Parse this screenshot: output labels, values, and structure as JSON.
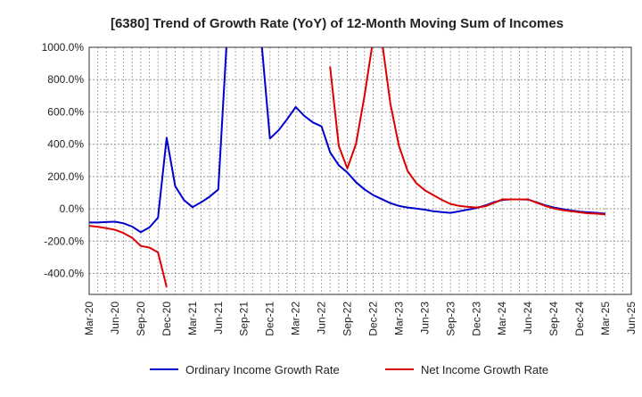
{
  "chart_data": {
    "type": "line",
    "title": "[6380]  Trend of Growth Rate (YoY) of 12-Month Moving Sum of Incomes",
    "xlabel": "",
    "ylabel": "",
    "x_ticks": [
      "Mar-20",
      "Jun-20",
      "Sep-20",
      "Dec-20",
      "Mar-21",
      "Jun-21",
      "Sep-21",
      "Dec-21",
      "Mar-22",
      "Jun-22",
      "Sep-22",
      "Dec-22",
      "Mar-23",
      "Jun-23",
      "Sep-23",
      "Dec-23",
      "Mar-24",
      "Jun-24",
      "Sep-24",
      "Dec-24",
      "Mar-25",
      "Jun-25"
    ],
    "y_ticks": [
      1000,
      800,
      600,
      400,
      200,
      0,
      -200,
      -400
    ],
    "y_tick_labels": [
      "1000.0%",
      "800.0%",
      "600.0%",
      "400.0%",
      "200.0%",
      "0.0%",
      "-200.0%",
      "-400.0%"
    ],
    "ylim": [
      -530,
      1000
    ],
    "grid": true,
    "legend_position": "bottom",
    "series": [
      {
        "name": "Ordinary Income Growth Rate",
        "color": "#0000cc",
        "points": [
          [
            "Mar-20",
            -85
          ],
          [
            "Apr-20",
            -85
          ],
          [
            "May-20",
            -82
          ],
          [
            "Jun-20",
            -80
          ],
          [
            "Jul-20",
            -90
          ],
          [
            "Aug-20",
            -110
          ],
          [
            "Sep-20",
            -145
          ],
          [
            "Oct-20",
            -115
          ],
          [
            "Nov-20",
            -55
          ],
          [
            "Dec-20",
            440
          ],
          [
            "Jan-21",
            140
          ],
          [
            "Feb-21",
            55
          ],
          [
            "Mar-21",
            10
          ],
          [
            "Apr-21",
            40
          ],
          [
            "May-21",
            75
          ],
          [
            "Jun-21",
            120
          ],
          [
            "Jul-21",
            1050
          ],
          [
            "Nov-21",
            1050
          ],
          [
            "Dec-21",
            435
          ],
          [
            "Jan-22",
            485
          ],
          [
            "Feb-22",
            555
          ],
          [
            "Mar-22",
            630
          ],
          [
            "Apr-22",
            575
          ],
          [
            "May-22",
            535
          ],
          [
            "Jun-22",
            510
          ],
          [
            "Jul-22",
            350
          ],
          [
            "Aug-22",
            270
          ],
          [
            "Sep-22",
            225
          ],
          [
            "Oct-22",
            165
          ],
          [
            "Nov-22",
            120
          ],
          [
            "Dec-22",
            85
          ],
          [
            "Jan-23",
            60
          ],
          [
            "Feb-23",
            35
          ],
          [
            "Mar-23",
            18
          ],
          [
            "Apr-23",
            8
          ],
          [
            "May-23",
            2
          ],
          [
            "Jun-23",
            -5
          ],
          [
            "Jul-23",
            -15
          ],
          [
            "Aug-23",
            -20
          ],
          [
            "Sep-23",
            -25
          ],
          [
            "Oct-23",
            -15
          ],
          [
            "Nov-23",
            -5
          ],
          [
            "Dec-23",
            5
          ],
          [
            "Jan-24",
            20
          ],
          [
            "Feb-24",
            40
          ],
          [
            "Mar-24",
            55
          ],
          [
            "Apr-24",
            58
          ],
          [
            "May-24",
            58
          ],
          [
            "Jun-24",
            57
          ],
          [
            "Jul-24",
            40
          ],
          [
            "Aug-24",
            22
          ],
          [
            "Sep-24",
            8
          ],
          [
            "Oct-24",
            -2
          ],
          [
            "Nov-24",
            -10
          ],
          [
            "Dec-24",
            -18
          ],
          [
            "Jan-25",
            -22
          ],
          [
            "Feb-25",
            -25
          ],
          [
            "Mar-25",
            -30
          ]
        ]
      },
      {
        "name": "Net Income Growth Rate",
        "color": "#dd0000",
        "points": [
          [
            "Mar-20",
            -105
          ],
          [
            "Apr-20",
            -112
          ],
          [
            "May-20",
            -120
          ],
          [
            "Jun-20",
            -130
          ],
          [
            "Jul-20",
            -150
          ],
          [
            "Aug-20",
            -180
          ],
          [
            "Sep-20",
            -230
          ],
          [
            "Oct-20",
            -240
          ],
          [
            "Nov-20",
            -270
          ],
          [
            "Dec-20",
            -485
          ],
          [
            "Jul-22",
            880
          ],
          [
            "Aug-22",
            390
          ],
          [
            "Sep-22",
            250
          ],
          [
            "Oct-22",
            400
          ],
          [
            "Nov-22",
            700
          ],
          [
            "Dec-22",
            1050
          ],
          [
            "Jan-23",
            1050
          ],
          [
            "Feb-23",
            650
          ],
          [
            "Mar-23",
            390
          ],
          [
            "Apr-23",
            235
          ],
          [
            "May-23",
            160
          ],
          [
            "Jun-23",
            115
          ],
          [
            "Jul-23",
            85
          ],
          [
            "Aug-23",
            55
          ],
          [
            "Sep-23",
            30
          ],
          [
            "Oct-23",
            18
          ],
          [
            "Nov-23",
            12
          ],
          [
            "Dec-23",
            8
          ],
          [
            "Jan-24",
            15
          ],
          [
            "Feb-24",
            35
          ],
          [
            "Mar-24",
            58
          ],
          [
            "Apr-24",
            58
          ],
          [
            "May-24",
            58
          ],
          [
            "Jun-24",
            58
          ],
          [
            "Jul-24",
            38
          ],
          [
            "Aug-24",
            18
          ],
          [
            "Sep-24",
            2
          ],
          [
            "Oct-24",
            -8
          ],
          [
            "Nov-24",
            -15
          ],
          [
            "Dec-24",
            -22
          ],
          [
            "Jan-25",
            -28
          ],
          [
            "Feb-25",
            -30
          ],
          [
            "Mar-25",
            -35
          ]
        ]
      }
    ]
  }
}
